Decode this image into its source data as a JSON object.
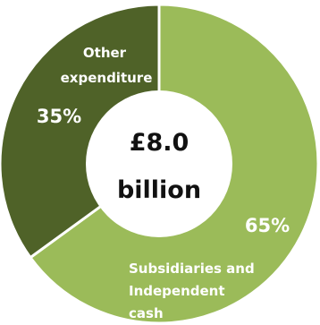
{
  "chart_data": {
    "type": "pie",
    "categories": [
      "Subsidiaries and Independent cash",
      "Other expenditure"
    ],
    "values": [
      65,
      35
    ],
    "value_labels": [
      "65%",
      "35%"
    ],
    "category_label_lines": [
      [
        "Subsidiaries and",
        "Independent",
        "cash"
      ],
      [
        "Other",
        "expenditure"
      ]
    ],
    "center_label": [
      "£8.0",
      "billion"
    ],
    "colors": [
      "#9bbb59",
      "#4f6228"
    ],
    "style": "donut",
    "start": "top",
    "direction": "clockwise"
  }
}
